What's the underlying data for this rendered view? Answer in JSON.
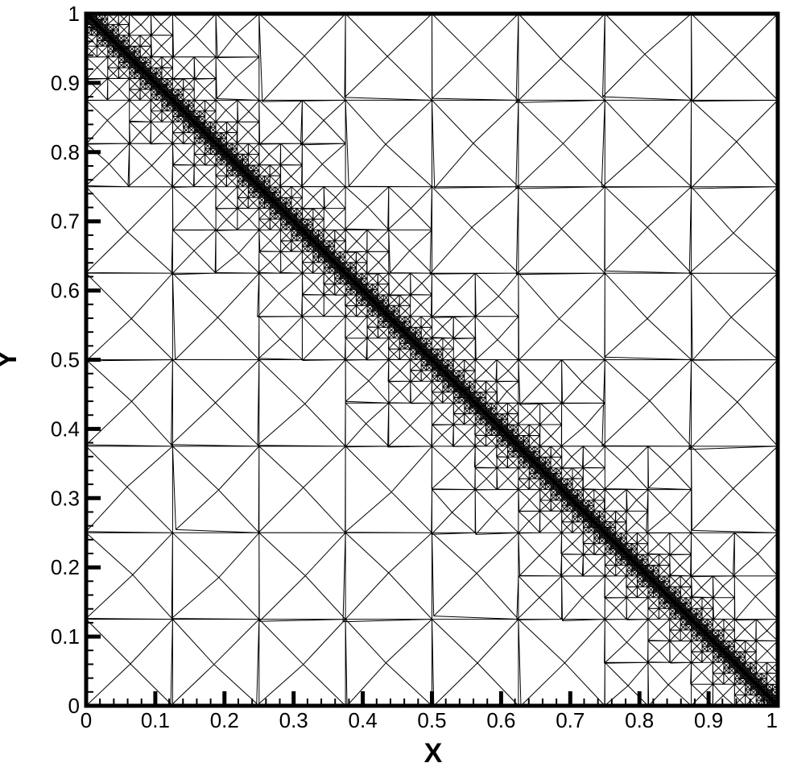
{
  "chart_data": {
    "type": "mesh",
    "title": "",
    "xlabel": "X",
    "ylabel": "Y",
    "xlim": [
      0,
      1
    ],
    "ylim": [
      0,
      1
    ],
    "xticks": [
      "0",
      "0.1",
      "0.2",
      "0.3",
      "0.4",
      "0.5",
      "0.6",
      "0.7",
      "0.8",
      "0.9",
      "1"
    ],
    "yticks": [
      "0",
      "0.1",
      "0.2",
      "0.3",
      "0.4",
      "0.5",
      "0.6",
      "0.7",
      "0.8",
      "0.9",
      "1"
    ],
    "refinement_line": {
      "from": [
        0,
        1
      ],
      "to": [
        1,
        0
      ]
    },
    "grid": false,
    "colors": {
      "line": "#000000",
      "background": "#ffffff"
    }
  }
}
